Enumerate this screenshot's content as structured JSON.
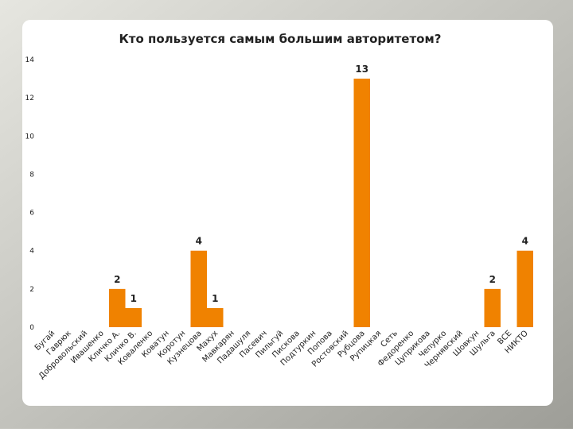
{
  "chart_data": {
    "type": "bar",
    "title": "Кто пользуется самым большим авторитетом?",
    "categories": [
      "Бугай",
      "Гаврюк",
      "Добровольский",
      "Ивашенко",
      "Кличко А.",
      "Кличко В.",
      "Коваленко",
      "Коватун",
      "Коротун",
      "Кузнецова",
      "Махух",
      "Мавкарян",
      "Падашуля",
      "Пасевич",
      "Пильгуй",
      "Пискова",
      "Подтуркин",
      "Попова",
      "Ростовский",
      "Рубцова",
      "Рупицкая",
      "Сеть",
      "Федоренко",
      "Цуприкова",
      "Чепурко",
      "Чернявский",
      "Шовкун",
      "Шульга",
      "ВСЕ",
      "НИКТО"
    ],
    "values": [
      0,
      0,
      0,
      0,
      2,
      1,
      0,
      0,
      0,
      4,
      1,
      0,
      0,
      0,
      0,
      0,
      0,
      0,
      0,
      13,
      0,
      0,
      0,
      0,
      0,
      0,
      0,
      2,
      0,
      4
    ],
    "color": "#f08200",
    "ylim": [
      0,
      14
    ],
    "yticks": [
      0,
      2,
      4,
      6,
      8,
      10,
      12,
      14
    ],
    "grid": false
  }
}
